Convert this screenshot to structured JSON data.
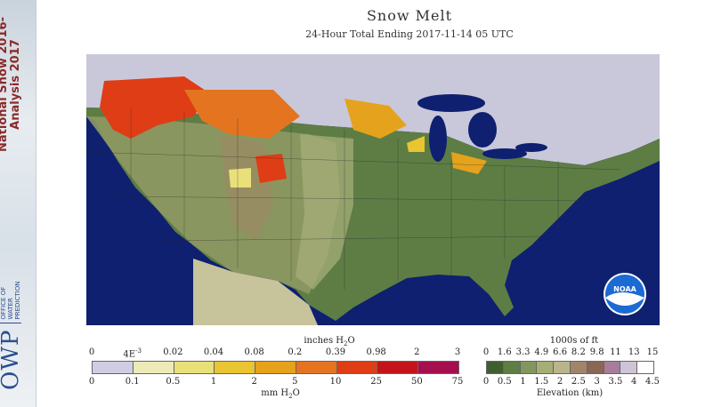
{
  "header": {
    "title": "Snow Melt",
    "subtitle": "24-Hour Total Ending 2017-11-14 05 UTC"
  },
  "banner": {
    "line1": "National Snow",
    "line2": "Analysis",
    "years1": "2016-",
    "years2": "2017",
    "owp": "OWP",
    "office_lines": [
      "OFFICE OF",
      "WATER",
      "PREDICTION"
    ]
  },
  "logo": {
    "text": "NOAA"
  },
  "snowmelt_legend": {
    "top_unit": "inches H",
    "top_unit_sub": "2",
    "top_unit_tail": "O",
    "top_ticks": [
      "0",
      "4E",
      "0.02",
      "0.04",
      "0.08",
      "0.2",
      "0.39",
      "0.98",
      "2",
      "3"
    ],
    "top_tick_4e_exp": "-3",
    "bottom_ticks": [
      "0",
      "0.1",
      "0.5",
      "1",
      "2",
      "5",
      "10",
      "25",
      "50",
      "75"
    ],
    "bottom_unit": "mm H",
    "bottom_unit_sub": "2",
    "bottom_unit_tail": "O",
    "colors": [
      "#cfcde3",
      "#ecebb6",
      "#e9e07a",
      "#e8c531",
      "#e5a21c",
      "#e47420",
      "#df3d15",
      "#c4141a",
      "#a50f4e"
    ]
  },
  "elevation_legend": {
    "top_unit": "1000s of ft",
    "top_ticks": [
      "0",
      "1.6",
      "3.3",
      "4.9",
      "6.6",
      "8.2",
      "9.8",
      "11",
      "13",
      "15"
    ],
    "bottom_ticks": [
      "0",
      "0.5",
      "1",
      "1.5",
      "2",
      "2.5",
      "3",
      "3.5",
      "4",
      "4.5"
    ],
    "bottom_unit": "Elevation (km)",
    "colors": [
      "#3f5f32",
      "#5f7d45",
      "#82985a",
      "#a6ae78",
      "#b8b58b",
      "#a28468",
      "#8a6655",
      "#a67e9a",
      "#d0c3d6",
      "#ffffff"
    ]
  },
  "colors": {
    "ocean": "#0f2070",
    "snow": "#c9c8da",
    "banner_text": "#8b2a2a",
    "owp_blue": "#2a4f8f"
  }
}
